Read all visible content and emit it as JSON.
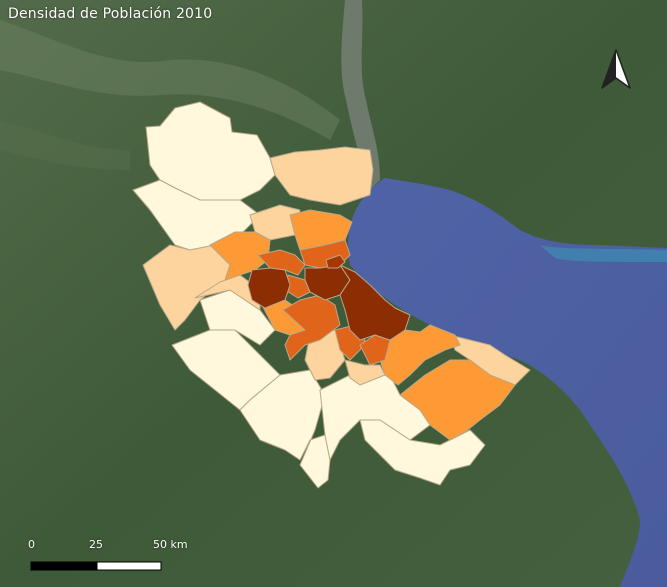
{
  "title": "Densidad de Población 2010",
  "scale": {
    "label_0": "0",
    "label_25": "25",
    "label_50": "50 km"
  },
  "north_arrow": {
    "icon": "north-arrow-icon"
  },
  "colors": {
    "water": "#4a5ea0",
    "land": "#3f5a3a",
    "density_classes": [
      "#fff8dc",
      "#fdd49e",
      "#fd9a35",
      "#e0641a",
      "#8c2d04"
    ]
  }
}
